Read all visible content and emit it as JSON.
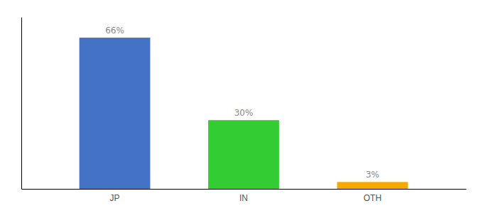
{
  "chart_data": {
    "type": "bar",
    "categories": [
      "JP",
      "IN",
      "OTH"
    ],
    "values": [
      66,
      30,
      3
    ],
    "value_labels": [
      "66%",
      "30%",
      "3%"
    ],
    "colors": [
      "#4472c4",
      "#33cc33",
      "#f5a800"
    ],
    "ylim": [
      0,
      75
    ],
    "grid": false,
    "data_labels": true,
    "tick_labels": "x"
  }
}
